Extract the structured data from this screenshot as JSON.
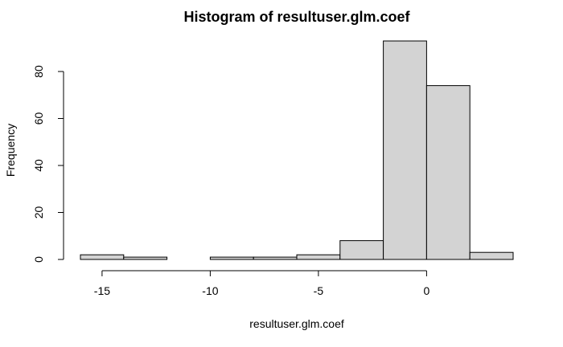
{
  "chart_data": {
    "type": "bar",
    "title": "Histogram of resultuser.glm.coef",
    "xlabel": "resultuser.glm.coef",
    "ylabel": "Frequency",
    "bins": [
      {
        "x0": -16,
        "x1": -14,
        "count": 2
      },
      {
        "x0": -14,
        "x1": -12,
        "count": 1
      },
      {
        "x0": -12,
        "x1": -10,
        "count": 0
      },
      {
        "x0": -10,
        "x1": -8,
        "count": 1
      },
      {
        "x0": -8,
        "x1": -6,
        "count": 1
      },
      {
        "x0": -6,
        "x1": -4,
        "count": 2
      },
      {
        "x0": -4,
        "x1": -2,
        "count": 8
      },
      {
        "x0": -2,
        "x1": 0,
        "count": 93
      },
      {
        "x0": 0,
        "x1": 2,
        "count": 74
      },
      {
        "x0": 2,
        "x1": 4,
        "count": 3
      }
    ],
    "xticks": [
      -15,
      -10,
      -5,
      0
    ],
    "yticks": [
      0,
      20,
      40,
      60,
      80
    ],
    "xlim": [
      -16,
      4
    ],
    "ylim": [
      0,
      93
    ],
    "bar_fill": "#d3d3d3",
    "bar_stroke": "#000000",
    "grid": false,
    "legend": "none"
  }
}
